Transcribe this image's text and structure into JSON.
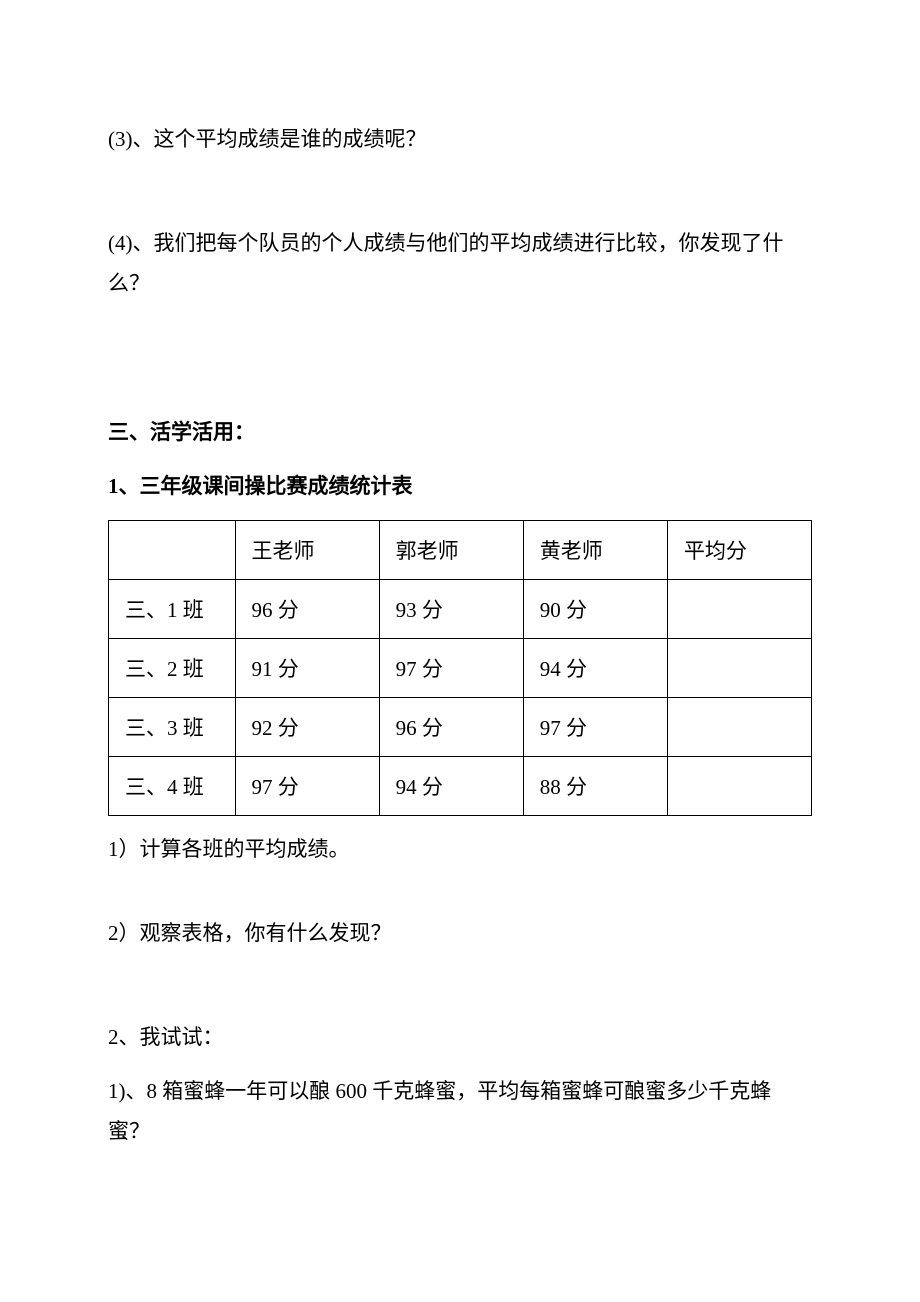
{
  "q3": "(3)、这个平均成绩是谁的成绩呢？",
  "q4": "(4)、我们把每个队员的个人成绩与他们的平均成绩进行比较，你发现了什么？",
  "section3_title": "三、活学活用：",
  "section3_sub1": "1、三年级课间操比赛成绩统计表",
  "table": {
    "columns": [
      "",
      "王老师",
      "郭老师",
      "黄老师",
      "平均分"
    ],
    "rows": [
      [
        "三、1 班",
        "96 分",
        "93 分",
        "90 分",
        ""
      ],
      [
        "三、2 班",
        "91 分",
        "97 分",
        "94 分",
        ""
      ],
      [
        "三、3 班",
        "92 分",
        "96 分",
        "97 分",
        ""
      ],
      [
        "三、4 班",
        "97 分",
        "94 分",
        "88 分",
        ""
      ]
    ]
  },
  "sub1_q1": "1）计算各班的平均成绩。",
  "sub1_q2": "2）观察表格，你有什么发现？",
  "sub2_title": "2、我试试：",
  "sub2_q1": "1)、8 箱蜜蜂一年可以酿 600 千克蜂蜜，平均每箱蜜蜂可酿蜜多少千克蜂蜜？"
}
